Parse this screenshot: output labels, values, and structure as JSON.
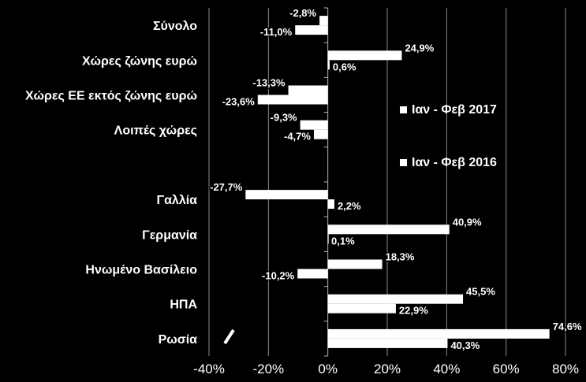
{
  "chart_data": {
    "type": "bar",
    "orientation": "horizontal",
    "categories": [
      "Σύνολο",
      "Χώρες ζώνης ευρώ",
      "Χώρες ΕΕ εκτός ζώνης ευρώ",
      "Λοιπές χώρες",
      "",
      "Γαλλία",
      "Γερμανία",
      "Ηνωμένο Βασίλειο",
      "ΗΠΑ",
      "Ρωσία"
    ],
    "series": [
      {
        "name": "Ιαν - Φεβ 2017",
        "values": [
          -2.8,
          24.9,
          -13.3,
          -9.3,
          null,
          -27.7,
          40.9,
          18.3,
          45.5,
          74.6
        ],
        "labels": [
          "-2,8%",
          "24,9%",
          "-13,3%",
          "-9,3%",
          "",
          "-27,7%",
          "40,9%",
          "18,3%",
          "45,5%",
          "74,6%"
        ]
      },
      {
        "name": "Ιαν - Φεβ 2016",
        "values": [
          -11.0,
          0.6,
          -23.6,
          -4.7,
          null,
          2.2,
          0.1,
          -10.2,
          22.9,
          40.3
        ],
        "labels": [
          "-11,0%",
          "0,6%",
          "-23,6%",
          "-4,7%",
          "",
          "2,2%",
          "0,1%",
          "-10,2%",
          "22,9%",
          "40,3%"
        ]
      }
    ],
    "xlim": [
      -40,
      80
    ],
    "xticks": [
      -40,
      -20,
      0,
      20,
      40,
      60,
      80
    ],
    "xtick_labels": [
      "-40%",
      "-20%",
      "0%",
      "20%",
      "40%",
      "60%",
      "80%"
    ],
    "grid": true,
    "legend_position": "right",
    "title": "",
    "xlabel": "",
    "ylabel": "",
    "colors": {
      "background": "#000000",
      "bar": "#ffffff",
      "text": "#ffffff",
      "grid": "#8a8a8a"
    }
  }
}
